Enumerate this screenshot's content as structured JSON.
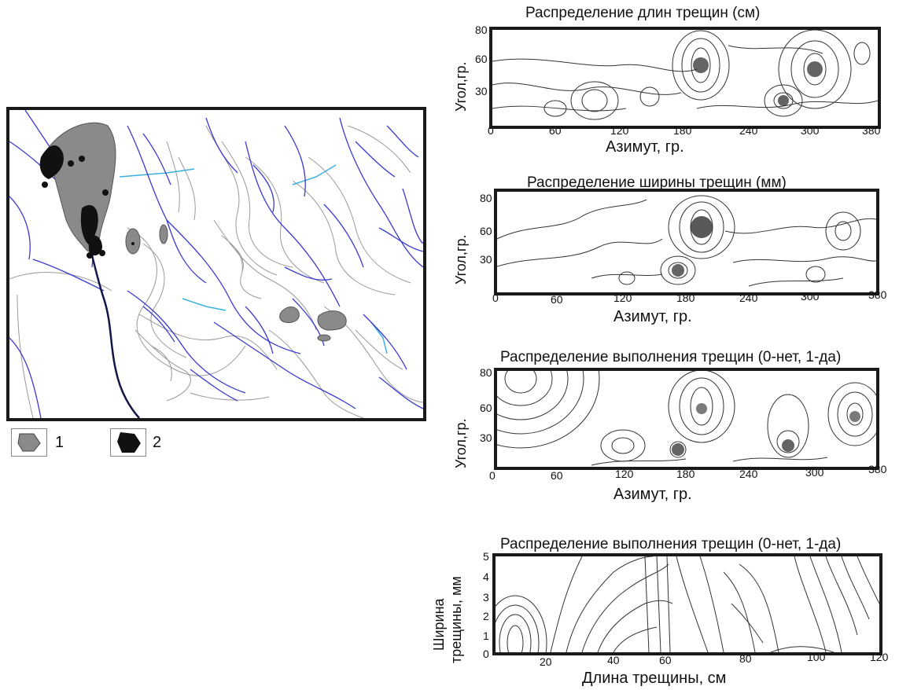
{
  "legend": [
    {
      "symbol": "gray-polygon-icon",
      "color": "#8a8a8a",
      "label": "1"
    },
    {
      "symbol": "black-polygon-icon",
      "color": "#111111",
      "label": "2"
    }
  ],
  "panels": [
    {
      "title": "Распределение длин трещин (см)",
      "ylabel": "Угол,гр.",
      "xlabel": "Азимут, гр.",
      "xticks": [
        "0",
        "60",
        "120",
        "180",
        "240",
        "300",
        "380"
      ],
      "yticks": [
        "80",
        "60",
        "30"
      ]
    },
    {
      "title": "Распределение ширины трещин (мм)",
      "ylabel": "Угол,гр.",
      "xlabel": "Азимут, гр.",
      "xticks": [
        "0",
        "60",
        "120",
        "180",
        "240",
        "300",
        "380"
      ],
      "yticks": [
        "80",
        "60",
        "30"
      ]
    },
    {
      "title": "Распределение выполнения трещин (0-нет, 1-да)",
      "ylabel": "Угол,гр.",
      "xlabel": "Азимут, гр.",
      "xticks": [
        "0",
        "60",
        "120",
        "180",
        "240",
        "300",
        "380"
      ],
      "yticks": [
        "80",
        "60",
        "30"
      ]
    },
    {
      "title": "Распределение выполнения трещин (0-нет, 1-да)",
      "ylabel_line1": "Ширина",
      "ylabel_line2": "трещины, мм",
      "xlabel": "Длина трещины, см",
      "xticks": [
        "20",
        "40",
        "60",
        "80",
        "100",
        "120"
      ],
      "yticks": [
        "5",
        "4",
        "3",
        "2",
        "1",
        "0"
      ]
    }
  ],
  "colors": {
    "rivers": "#3a3ad0",
    "contours": "#9a9a9a",
    "light_water": "#3ab0e0",
    "zone1": "#8a8a8a",
    "zone2": "#111111"
  }
}
